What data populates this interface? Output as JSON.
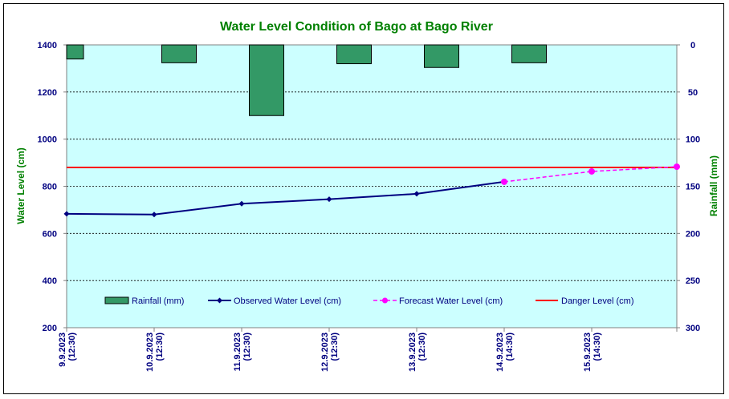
{
  "chart_data": {
    "type": "line",
    "title": "Water Level Condition  of Bago at Bago River",
    "ylabel_left": "Water Level (cm)",
    "ylabel_right": "Rainfall (mm)",
    "y_left_range": [
      200,
      1400
    ],
    "y_left_ticks": [
      "1400",
      "1200",
      "1000",
      "800",
      "600",
      "400",
      "200"
    ],
    "y_right_range": [
      0,
      300
    ],
    "y_right_ticks": [
      "0",
      "50",
      "100",
      "150",
      "200",
      "250",
      "300"
    ],
    "x_dates": [
      {
        "date": "9.9.2023",
        "time": "(12:30)"
      },
      {
        "date": "10.9.2023",
        "time": "(12:30)"
      },
      {
        "date": "11.9.2023",
        "time": "(12:30)"
      },
      {
        "date": "12.9.2023",
        "time": "(12:30)"
      },
      {
        "date": "13.9.2023",
        "time": "(12:30)"
      },
      {
        "date": "14.9.2023",
        "time": "(14:30)"
      },
      {
        "date": "15.9.2023",
        "time": "(14:30)"
      }
    ],
    "rainfall": [
      15,
      19,
      75,
      20,
      24,
      19
    ],
    "observed": [
      683,
      680,
      726,
      745,
      768,
      819
    ],
    "forecast": [
      819,
      863,
      883
    ],
    "danger_level": 880,
    "colors": {
      "plot_bg": "#CCFFFF",
      "rainfall": "#339966",
      "observed": "#000080",
      "forecast": "#FF00FF",
      "danger": "#FF0000"
    },
    "legend": {
      "position": "bottom",
      "rainfall": "Rainfall (mm)",
      "observed": "Observed Water Level (cm)",
      "forecast": "Forecast Water Level (cm)",
      "danger": "Danger Level (cm)"
    },
    "grid": true
  }
}
